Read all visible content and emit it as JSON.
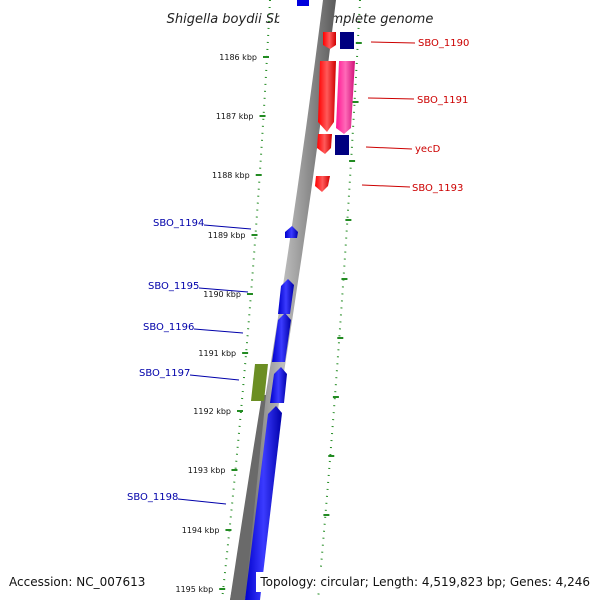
{
  "title": "Shigella boydii Sb227, complete genome",
  "footer": {
    "accession": "Accession: NC_007613",
    "summary": "Topology: circular; Length: 4,519,823 bp; Genes: 4,246"
  },
  "colors": {
    "forward_strand": "#ff0000",
    "forward_alt": "#ff1493",
    "reverse_strand": "#0000ee",
    "dark_feature": "#000080",
    "olive_feature": "#6b8e23",
    "backbone": "#777777",
    "ticks": "#228b22",
    "forward_label": "#cc0000",
    "reverse_label": "#0000aa"
  },
  "kbp_ticks": [
    "1186 kbp",
    "1187 kbp",
    "1188 kbp",
    "1189 kbp",
    "1190 kbp",
    "1191 kbp",
    "1192 kbp",
    "1193 kbp",
    "1194 kbp",
    "1195 kbp"
  ],
  "gene_labels": {
    "forward": [
      "SBO_1190",
      "SBO_1191",
      "yecD",
      "SBO_1193"
    ],
    "reverse": [
      "SBO_1194",
      "SBO_1195",
      "SBO_1196",
      "SBO_1197",
      "SBO_1198"
    ]
  }
}
